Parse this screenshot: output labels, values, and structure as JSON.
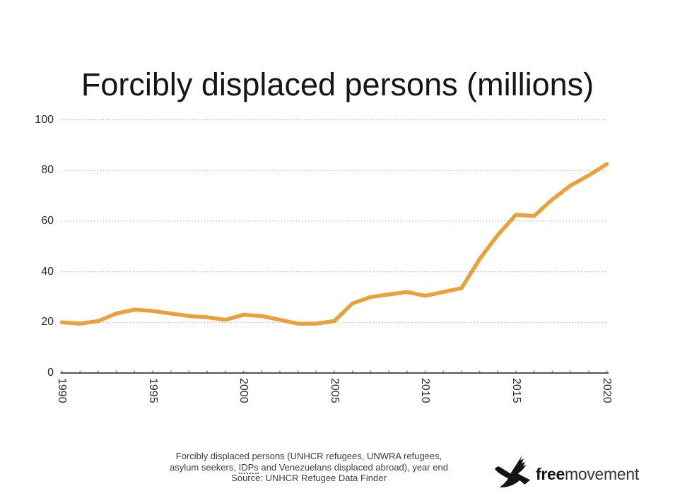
{
  "title": "Forcibly displaced persons (millions)",
  "chart_data": {
    "type": "line",
    "title": "Forcibly displaced persons (millions)",
    "x": [
      1990,
      1991,
      1992,
      1993,
      1994,
      1995,
      1996,
      1997,
      1998,
      1999,
      2000,
      2001,
      2002,
      2003,
      2004,
      2005,
      2006,
      2007,
      2008,
      2009,
      2010,
      2011,
      2012,
      2013,
      2014,
      2015,
      2016,
      2017,
      2018,
      2019,
      2020
    ],
    "series": [
      {
        "name": "Forcibly displaced persons (millions)",
        "values": [
          20,
          19.5,
          20.5,
          23.5,
          25,
          24.5,
          23.5,
          22.5,
          22,
          21,
          23,
          22.5,
          21,
          19.5,
          19.5,
          20.5,
          27.5,
          30,
          31,
          32,
          30.5,
          32,
          33.5,
          45,
          54.5,
          62.5,
          62,
          68.5,
          74,
          78,
          82.5
        ]
      }
    ],
    "xlabel": "",
    "ylabel": "",
    "ylim": [
      0,
      100
    ],
    "yticks": [
      0,
      20,
      40,
      60,
      80,
      100
    ],
    "xticks": [
      1990,
      1995,
      2000,
      2005,
      2010,
      2015,
      2020
    ],
    "grid": "horizontal-dotted",
    "legend_position": "none",
    "line_color": "#E8A13B",
    "gridline_color": "#b0b0b0",
    "axis_color": "#1a1a1a",
    "tick_color": "#8a8a8a"
  },
  "caption": {
    "line1": "Forcibly displaced persons (UNHCR refugees, UNWRA refugees,",
    "line2_before": "asylum seekers, ",
    "line2_flagged_word": "IDPs",
    "line2_after": " and Venezuelans displaced abroad), year end",
    "line3": "Source: UNHCR Refugee Data Finder",
    "spellcheck_underline_color": "#d94f43"
  },
  "logo": {
    "brand_bold": "free",
    "brand_regular": "movement",
    "bird_icon": "flying-goose-silhouette",
    "color": "#1d1d1d"
  }
}
